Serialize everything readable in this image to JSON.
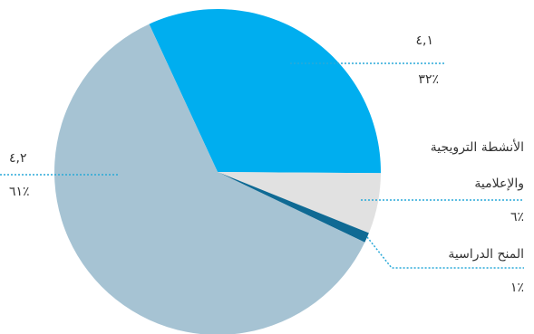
{
  "chart_data": {
    "type": "pie",
    "categories": [
      "٤,١",
      "الأنشطة الترويجية والإعلامية",
      "المنح الدراسية",
      "٤,٢"
    ],
    "values": [
      32,
      6,
      1,
      61
    ],
    "value_labels": [
      "٪٣٢",
      "٪٦",
      "٪١",
      "٪٦١"
    ],
    "colors": [
      "#00aeef",
      "#e1e1e1",
      "#0f6a94",
      "#a6c3d3"
    ]
  }
}
